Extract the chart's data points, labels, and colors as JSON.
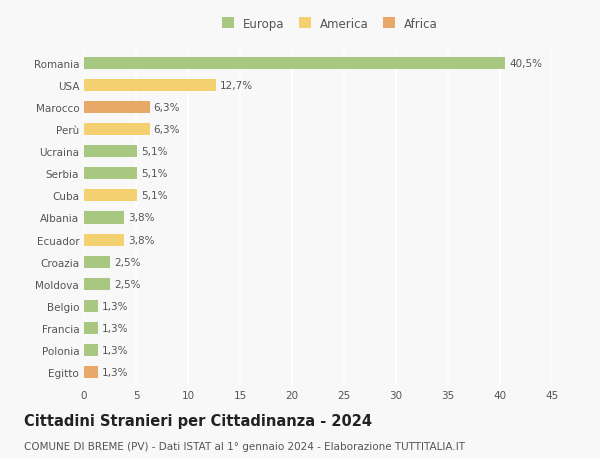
{
  "categories": [
    "Romania",
    "USA",
    "Marocco",
    "Perù",
    "Ucraina",
    "Serbia",
    "Cuba",
    "Albania",
    "Ecuador",
    "Croazia",
    "Moldova",
    "Belgio",
    "Francia",
    "Polonia",
    "Egitto"
  ],
  "values": [
    40.5,
    12.7,
    6.3,
    6.3,
    5.1,
    5.1,
    5.1,
    3.8,
    3.8,
    2.5,
    2.5,
    1.3,
    1.3,
    1.3,
    1.3
  ],
  "labels": [
    "40,5%",
    "12,7%",
    "6,3%",
    "6,3%",
    "5,1%",
    "5,1%",
    "5,1%",
    "3,8%",
    "3,8%",
    "2,5%",
    "2,5%",
    "1,3%",
    "1,3%",
    "1,3%",
    "1,3%"
  ],
  "continents": [
    "Europa",
    "America",
    "Africa",
    "America",
    "Europa",
    "Europa",
    "America",
    "Europa",
    "America",
    "Europa",
    "Europa",
    "Europa",
    "Europa",
    "Europa",
    "Africa"
  ],
  "colors": {
    "Europa": "#a8c882",
    "America": "#f5d070",
    "Africa": "#e8a868"
  },
  "title": "Cittadini Stranieri per Cittadinanza - 2024",
  "subtitle": "COMUNE DI BREME (PV) - Dati ISTAT al 1° gennaio 2024 - Elaborazione TUTTITALIA.IT",
  "xlim": [
    0,
    45
  ],
  "xticks": [
    0,
    5,
    10,
    15,
    20,
    25,
    30,
    35,
    40,
    45
  ],
  "bg_color": "#f8f8f8",
  "grid_color": "#ffffff",
  "bar_height": 0.55,
  "title_fontsize": 10.5,
  "subtitle_fontsize": 7.5,
  "label_fontsize": 7.5,
  "tick_fontsize": 7.5,
  "legend_fontsize": 8.5
}
